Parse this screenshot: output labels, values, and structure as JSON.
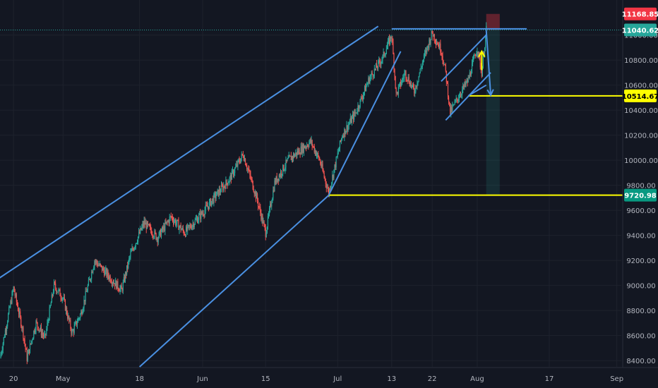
{
  "chart_data": {
    "type": "candlestick",
    "y_axis": {
      "ylim": [
        8350,
        11280
      ],
      "ticks": [
        8400,
        8600,
        8800,
        9000,
        9200,
        9400,
        9600,
        9800,
        10000,
        10200,
        10400,
        10600,
        10800,
        11000
      ],
      "tick_labels": [
        "8400.00",
        "8600.00",
        "8800.00",
        "9000.00",
        "9200.00",
        "9400.00",
        "9600.00",
        "9800.00",
        "10000.00",
        "10200.00",
        "10400.00",
        "10600.00",
        "10800.00",
        "11000.00"
      ]
    },
    "x_axis": {
      "xlim": [
        "2020-04-17",
        "2020-09-02"
      ],
      "ticks": [
        {
          "date": "2020-04-20",
          "label": "20"
        },
        {
          "date": "2020-05-01",
          "label": "May"
        },
        {
          "date": "2020-05-18",
          "label": "18"
        },
        {
          "date": "2020-06-01",
          "label": "Jun"
        },
        {
          "date": "2020-06-15",
          "label": "15"
        },
        {
          "date": "2020-07-01",
          "label": "Jul"
        },
        {
          "date": "2020-07-13",
          "label": "13"
        },
        {
          "date": "2020-07-22",
          "label": "22"
        },
        {
          "date": "2020-08-01",
          "label": "Aug"
        },
        {
          "date": "2020-08-17",
          "label": "17"
        },
        {
          "date": "2020-09-01",
          "label": "Sep"
        }
      ]
    },
    "price_path": [
      {
        "date": "2020-04-17",
        "price": 8420
      },
      {
        "date": "2020-04-20",
        "price": 8980
      },
      {
        "date": "2020-04-22",
        "price": 8650
      },
      {
        "date": "2020-04-23",
        "price": 8420
      },
      {
        "date": "2020-04-25",
        "price": 8700
      },
      {
        "date": "2020-04-27",
        "price": 8580
      },
      {
        "date": "2020-04-29",
        "price": 9000
      },
      {
        "date": "2020-05-01",
        "price": 8900
      },
      {
        "date": "2020-05-03",
        "price": 8620
      },
      {
        "date": "2020-05-05",
        "price": 8780
      },
      {
        "date": "2020-05-08",
        "price": 9200
      },
      {
        "date": "2020-05-11",
        "price": 9080
      },
      {
        "date": "2020-05-14",
        "price": 8960
      },
      {
        "date": "2020-05-16",
        "price": 9250
      },
      {
        "date": "2020-05-19",
        "price": 9500
      },
      {
        "date": "2020-05-22",
        "price": 9380
      },
      {
        "date": "2020-05-25",
        "price": 9550
      },
      {
        "date": "2020-05-28",
        "price": 9420
      },
      {
        "date": "2020-06-01",
        "price": 9580
      },
      {
        "date": "2020-06-04",
        "price": 9720
      },
      {
        "date": "2020-06-07",
        "price": 9850
      },
      {
        "date": "2020-06-10",
        "price": 10050
      },
      {
        "date": "2020-06-13",
        "price": 9700
      },
      {
        "date": "2020-06-15",
        "price": 9420
      },
      {
        "date": "2020-06-17",
        "price": 9820
      },
      {
        "date": "2020-06-20",
        "price": 10000
      },
      {
        "date": "2020-06-22",
        "price": 10060
      },
      {
        "date": "2020-06-25",
        "price": 10150
      },
      {
        "date": "2020-06-27",
        "price": 10000
      },
      {
        "date": "2020-06-29",
        "price": 9740
      },
      {
        "date": "2020-07-02",
        "price": 10200
      },
      {
        "date": "2020-07-05",
        "price": 10380
      },
      {
        "date": "2020-07-08",
        "price": 10650
      },
      {
        "date": "2020-07-11",
        "price": 10820
      },
      {
        "date": "2020-07-13",
        "price": 11000
      },
      {
        "date": "2020-07-14",
        "price": 10520
      },
      {
        "date": "2020-07-16",
        "price": 10700
      },
      {
        "date": "2020-07-18",
        "price": 10550
      },
      {
        "date": "2020-07-20",
        "price": 10800
      },
      {
        "date": "2020-07-22",
        "price": 11020
      },
      {
        "date": "2020-07-24",
        "price": 10880
      },
      {
        "date": "2020-07-25",
        "price": 10700
      },
      {
        "date": "2020-07-26",
        "price": 10380
      },
      {
        "date": "2020-07-28",
        "price": 10520
      },
      {
        "date": "2020-07-30",
        "price": 10640
      },
      {
        "date": "2020-08-01",
        "price": 10900
      },
      {
        "date": "2020-08-02",
        "price": 10700
      },
      {
        "date": "2020-08-03",
        "price": 11040
      }
    ],
    "horizontal_levels": [
      {
        "value": 11168.85,
        "label": "11168.85",
        "style": "tag",
        "color": "#f23645",
        "text_color": "#ffffff"
      },
      {
        "value": 11040.62,
        "label": "11040.62",
        "style": "dotted",
        "color": "#26a69a",
        "text_color": "#ffffff"
      },
      {
        "value": 10514.67,
        "label": "10514.67",
        "style": "solid",
        "color": "#ffff00",
        "text_color": "#000000",
        "from": "2020-07-30"
      },
      {
        "value": 9720.98,
        "label": "9720.98",
        "style": "solid",
        "color": "#ffff00",
        "text_color": "#ffffff",
        "tag_color": "#089981",
        "from": "2020-06-29"
      }
    ],
    "trend_lines": [
      {
        "from": {
          "date": "2020-04-06",
          "price": 8800
        },
        "to": {
          "date": "2020-07-10",
          "price": 11070
        }
      },
      {
        "from": {
          "date": "2020-05-18",
          "price": 8350
        },
        "to": {
          "date": "2020-06-29",
          "price": 9720
        }
      },
      {
        "from": {
          "date": "2020-06-29",
          "price": 9720
        },
        "to": {
          "date": "2020-07-15",
          "price": 10870
        }
      },
      {
        "from": {
          "date": "2020-07-13",
          "price": 11050
        },
        "to": {
          "date": "2020-08-12",
          "price": 11050
        }
      },
      {
        "from": {
          "date": "2020-07-24",
          "price": 10630
        },
        "to": {
          "date": "2020-08-03",
          "price": 11000
        }
      },
      {
        "from": {
          "date": "2020-07-25",
          "price": 10320
        },
        "to": {
          "date": "2020-08-04",
          "price": 10700
        }
      },
      {
        "from": {
          "date": "2020-07-30",
          "price": 10514.67
        },
        "to": {
          "date": "2020-08-03",
          "price": 10600
        }
      }
    ],
    "arrows": [
      {
        "color": "#ffff00",
        "from": {
          "date": "2020-08-02",
          "price": 10720
        },
        "to": {
          "date": "2020-08-02",
          "price": 10870
        }
      },
      {
        "color": "#4a90e2",
        "from": {
          "date": "2020-08-03",
          "price": 11040
        },
        "to": {
          "date": "2020-08-04",
          "price": 10520
        }
      }
    ],
    "position_box": {
      "from": "2020-08-03",
      "to": "2020-08-06",
      "entry": 11040.62,
      "stop": 11168.85,
      "target": 9720.98,
      "stop_color": "#f23645",
      "target_color": "#26a69a"
    },
    "colors": {
      "background": "#131722",
      "up": "#26a69a",
      "down": "#ef5350",
      "grid": "#1e222d",
      "axis_text": "#b2b5be",
      "line_blue": "#4a90e2",
      "line_yellow": "#ffff00"
    }
  }
}
